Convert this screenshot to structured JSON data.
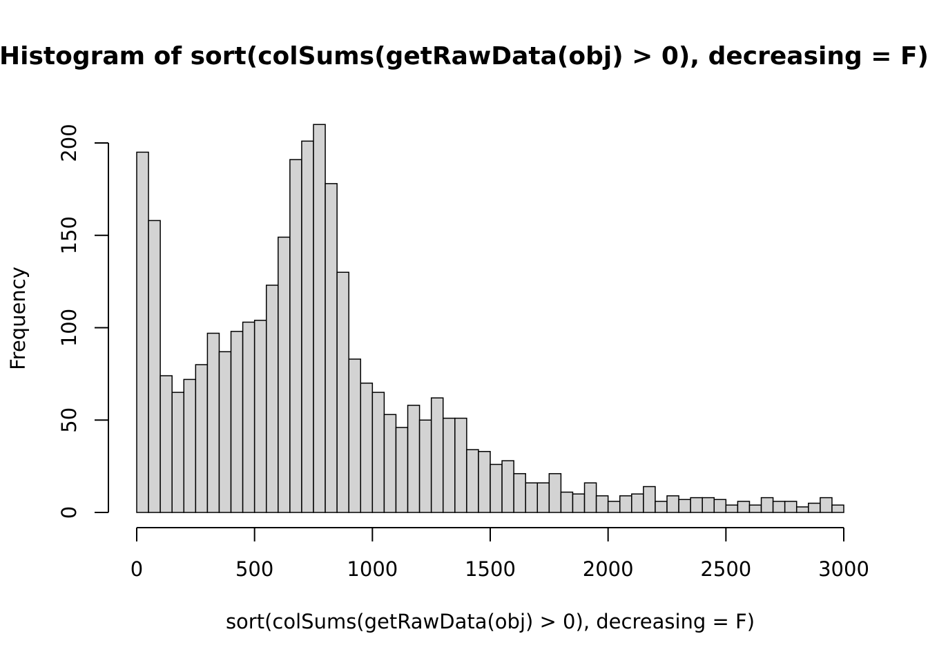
{
  "chart_data": {
    "type": "bar",
    "title": "Histogram of sort(colSums(getRawData(obj) > 0), decreasing = F)",
    "xlabel": "sort(colSums(getRawData(obj) > 0), decreasing = F)",
    "ylabel": "Frequency",
    "bin_width": 50,
    "x_start": 0,
    "xlim": [
      0,
      3000
    ],
    "ylim": [
      0,
      210
    ],
    "x_ticks": [
      0,
      500,
      1000,
      1500,
      2000,
      2500,
      3000
    ],
    "y_ticks": [
      0,
      50,
      100,
      150,
      200
    ],
    "values": [
      195,
      158,
      74,
      65,
      72,
      80,
      97,
      87,
      98,
      103,
      104,
      123,
      149,
      191,
      201,
      210,
      178,
      130,
      83,
      70,
      65,
      53,
      46,
      58,
      50,
      62,
      51,
      51,
      34,
      33,
      26,
      28,
      21,
      16,
      16,
      21,
      11,
      10,
      16,
      9,
      6,
      9,
      10,
      14,
      6,
      9,
      7,
      8,
      8,
      7,
      4,
      6,
      4,
      8,
      6,
      6,
      3,
      5,
      8,
      4
    ],
    "colors": {
      "bar_fill": "#d3d3d3",
      "bar_stroke": "#000000"
    },
    "grid": false,
    "legend": "none"
  }
}
